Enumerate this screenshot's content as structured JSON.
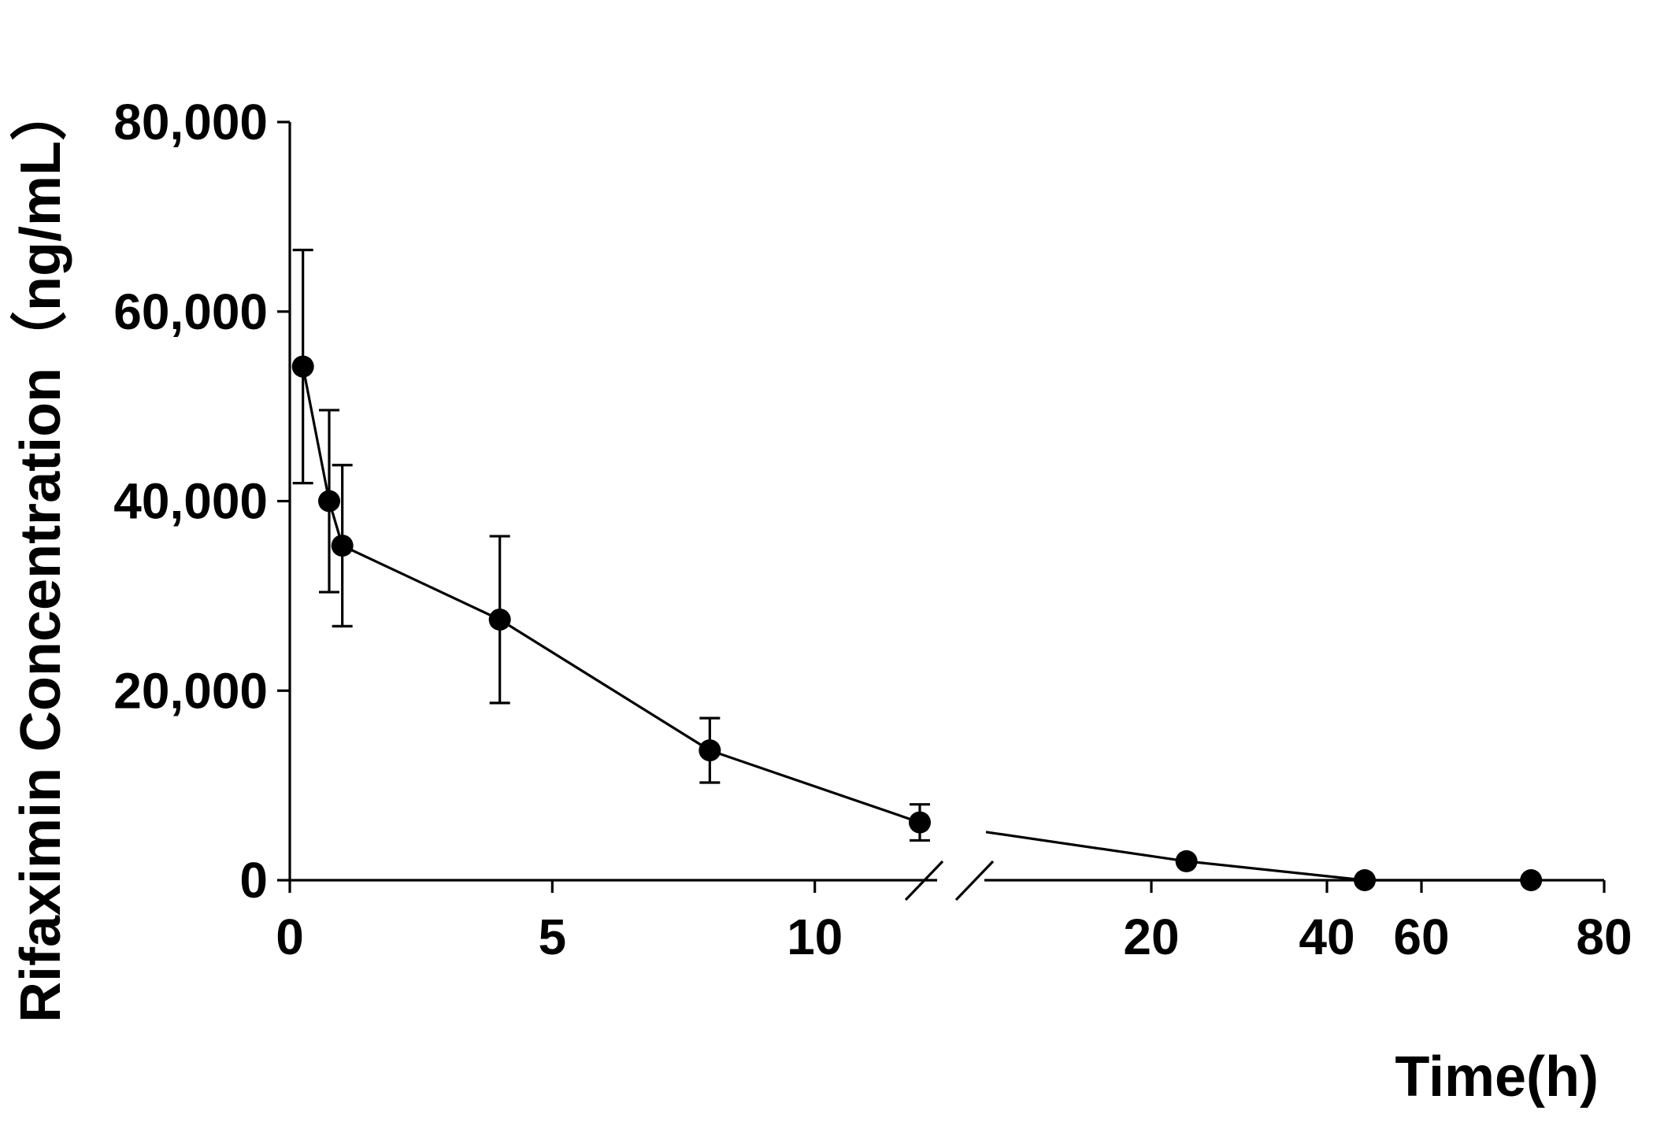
{
  "chart_data": {
    "type": "line",
    "xlabel": "Time(h)",
    "ylabel": "Rifaximin Concentration（ng/mL）",
    "ylim": [
      0,
      80000
    ],
    "y_ticks": [
      0,
      20000,
      40000,
      60000,
      80000
    ],
    "y_tick_labels": [
      "0",
      "20,000",
      "40,000",
      "60,000",
      "80,000"
    ],
    "x_axis_break": true,
    "x_segments": [
      {
        "range": [
          0,
          12
        ],
        "ticks": [
          0,
          5,
          10
        ],
        "tick_labels": [
          "0",
          "5",
          "10"
        ]
      },
      {
        "range": [
          12,
          80
        ],
        "ticks": [
          20,
          40,
          60,
          80
        ],
        "tick_labels": [
          "20",
          "40",
          "60",
          "80"
        ]
      }
    ],
    "series": [
      {
        "x": [
          0.25,
          0.75,
          1,
          4,
          8,
          12,
          24,
          48,
          72
        ],
        "y": [
          54200,
          40000,
          35300,
          27500,
          13700,
          6100,
          2000,
          0,
          0
        ],
        "error": [
          12300,
          9600,
          8500,
          8800,
          3400,
          1900,
          null,
          null,
          null
        ]
      }
    ],
    "grid": false,
    "legend": "none",
    "colors": {
      "line": "#000000",
      "marker": "#000000",
      "axis": "#000000"
    }
  }
}
